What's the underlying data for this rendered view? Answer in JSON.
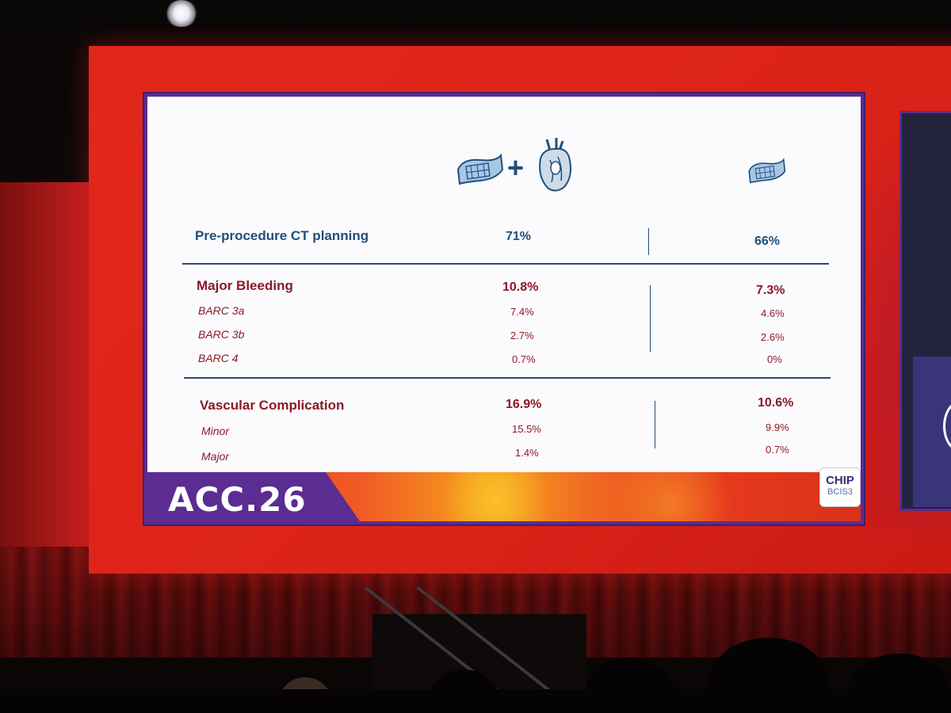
{
  "slide": {
    "header_icons": [
      "stent-icon",
      "plus-icon",
      "heart-valve-icon",
      "stent-icon"
    ],
    "rows": [
      {
        "label": "Pre-procedure CT planning",
        "left": "71%",
        "right": "66%"
      },
      {
        "label": "Major Bleeding",
        "left": "10.8%",
        "right": "7.3%"
      },
      {
        "label": "BARC 3a",
        "left": "7.4%",
        "right": "4.6%"
      },
      {
        "label": "BARC 3b",
        "left": "2.7%",
        "right": "2.6%"
      },
      {
        "label": "BARC 4",
        "left": "0.7%",
        "right": "0%"
      },
      {
        "label": "Vascular Complication",
        "left": "16.9%",
        "right": "10.6%"
      },
      {
        "label": "Minor",
        "left": "15.5%",
        "right": "9.9%"
      },
      {
        "label": "Major",
        "left": "1.4%",
        "right": "0.7%"
      }
    ],
    "footer": {
      "event": "ACC.26",
      "logo_line1": "CHIP",
      "logo_line2": "BCIS3"
    }
  },
  "colors": {
    "screen_red": "#e2261b",
    "slide_purple": "#5b2c91",
    "text_blue": "#1f4f7a",
    "text_red": "#8a1a28"
  }
}
